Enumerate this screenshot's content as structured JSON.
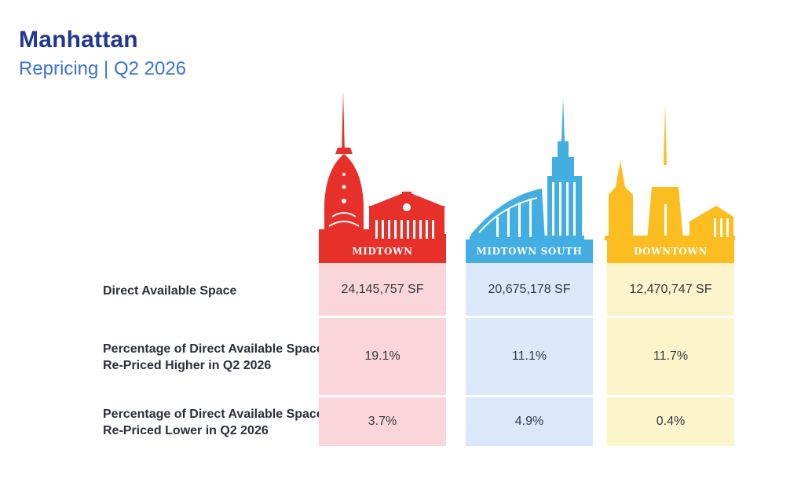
{
  "header": {
    "title": "Manhattan",
    "subtitle": "Repricing | Q2 2026"
  },
  "colors": {
    "title": "#22378f",
    "subtitle": "#3a73cf",
    "midtown": "#e8302a",
    "midtown_south": "#42aee2",
    "downtown": "#fbbd1f",
    "midtown_bg": "#fad6da",
    "midtown_south_bg": "#dbe8fb",
    "downtown_bg": "#fcf4ca"
  },
  "chart_data": {
    "type": "table",
    "columns": [
      "MIDTOWN",
      "MIDTOWN SOUTH",
      "DOWNTOWN"
    ],
    "rows": [
      {
        "label": "Direct Available Space",
        "values": [
          "24,145,757 SF",
          "20,675,178 SF",
          "12,470,747 SF"
        ]
      },
      {
        "label": "Percentage of Direct Available Space Re-Priced Higher in Q2 2026",
        "values": [
          "19.1%",
          "11.1%",
          "11.7%"
        ]
      },
      {
        "label": "Percentage of Direct Available Space Re-Priced Lower in Q2 2026",
        "values": [
          "3.7%",
          "4.9%",
          "0.4%"
        ]
      }
    ]
  }
}
